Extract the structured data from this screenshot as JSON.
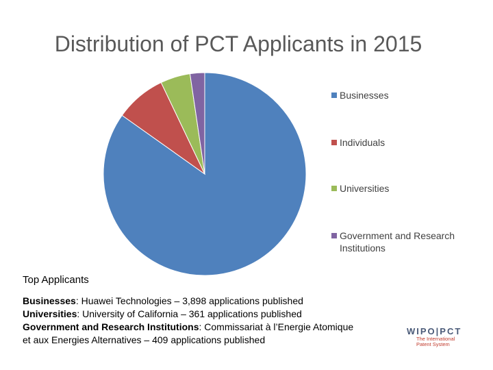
{
  "chart_data": {
    "type": "pie",
    "title": "Distribution of PCT Applicants in 2015",
    "categories": [
      "Businesses",
      "Individuals",
      "Universities",
      "Government and Research Institutions"
    ],
    "values": [
      83.8,
      8.0,
      4.7,
      2.3
    ],
    "colors": [
      "#4f81bd",
      "#c0504d",
      "#9bbb59",
      "#8064a2"
    ],
    "legend_position": "right"
  },
  "top_applicants": {
    "heading": "Top Applicants",
    "lines": [
      {
        "label": "Businesses",
        "text": ": Huawei Technologies – 3,898 applications published"
      },
      {
        "label": "Universities",
        "text": ":  University of California – 361 applications published"
      },
      {
        "label": "Government and Research Institutions",
        "text": ": Commissariat à l’Energie Atomique"
      }
    ],
    "continuation": "et aux Energies Alternatives – 409 applications published"
  },
  "logo": {
    "main": "WIPO|PCT",
    "sub": "The International\nPatent System"
  }
}
